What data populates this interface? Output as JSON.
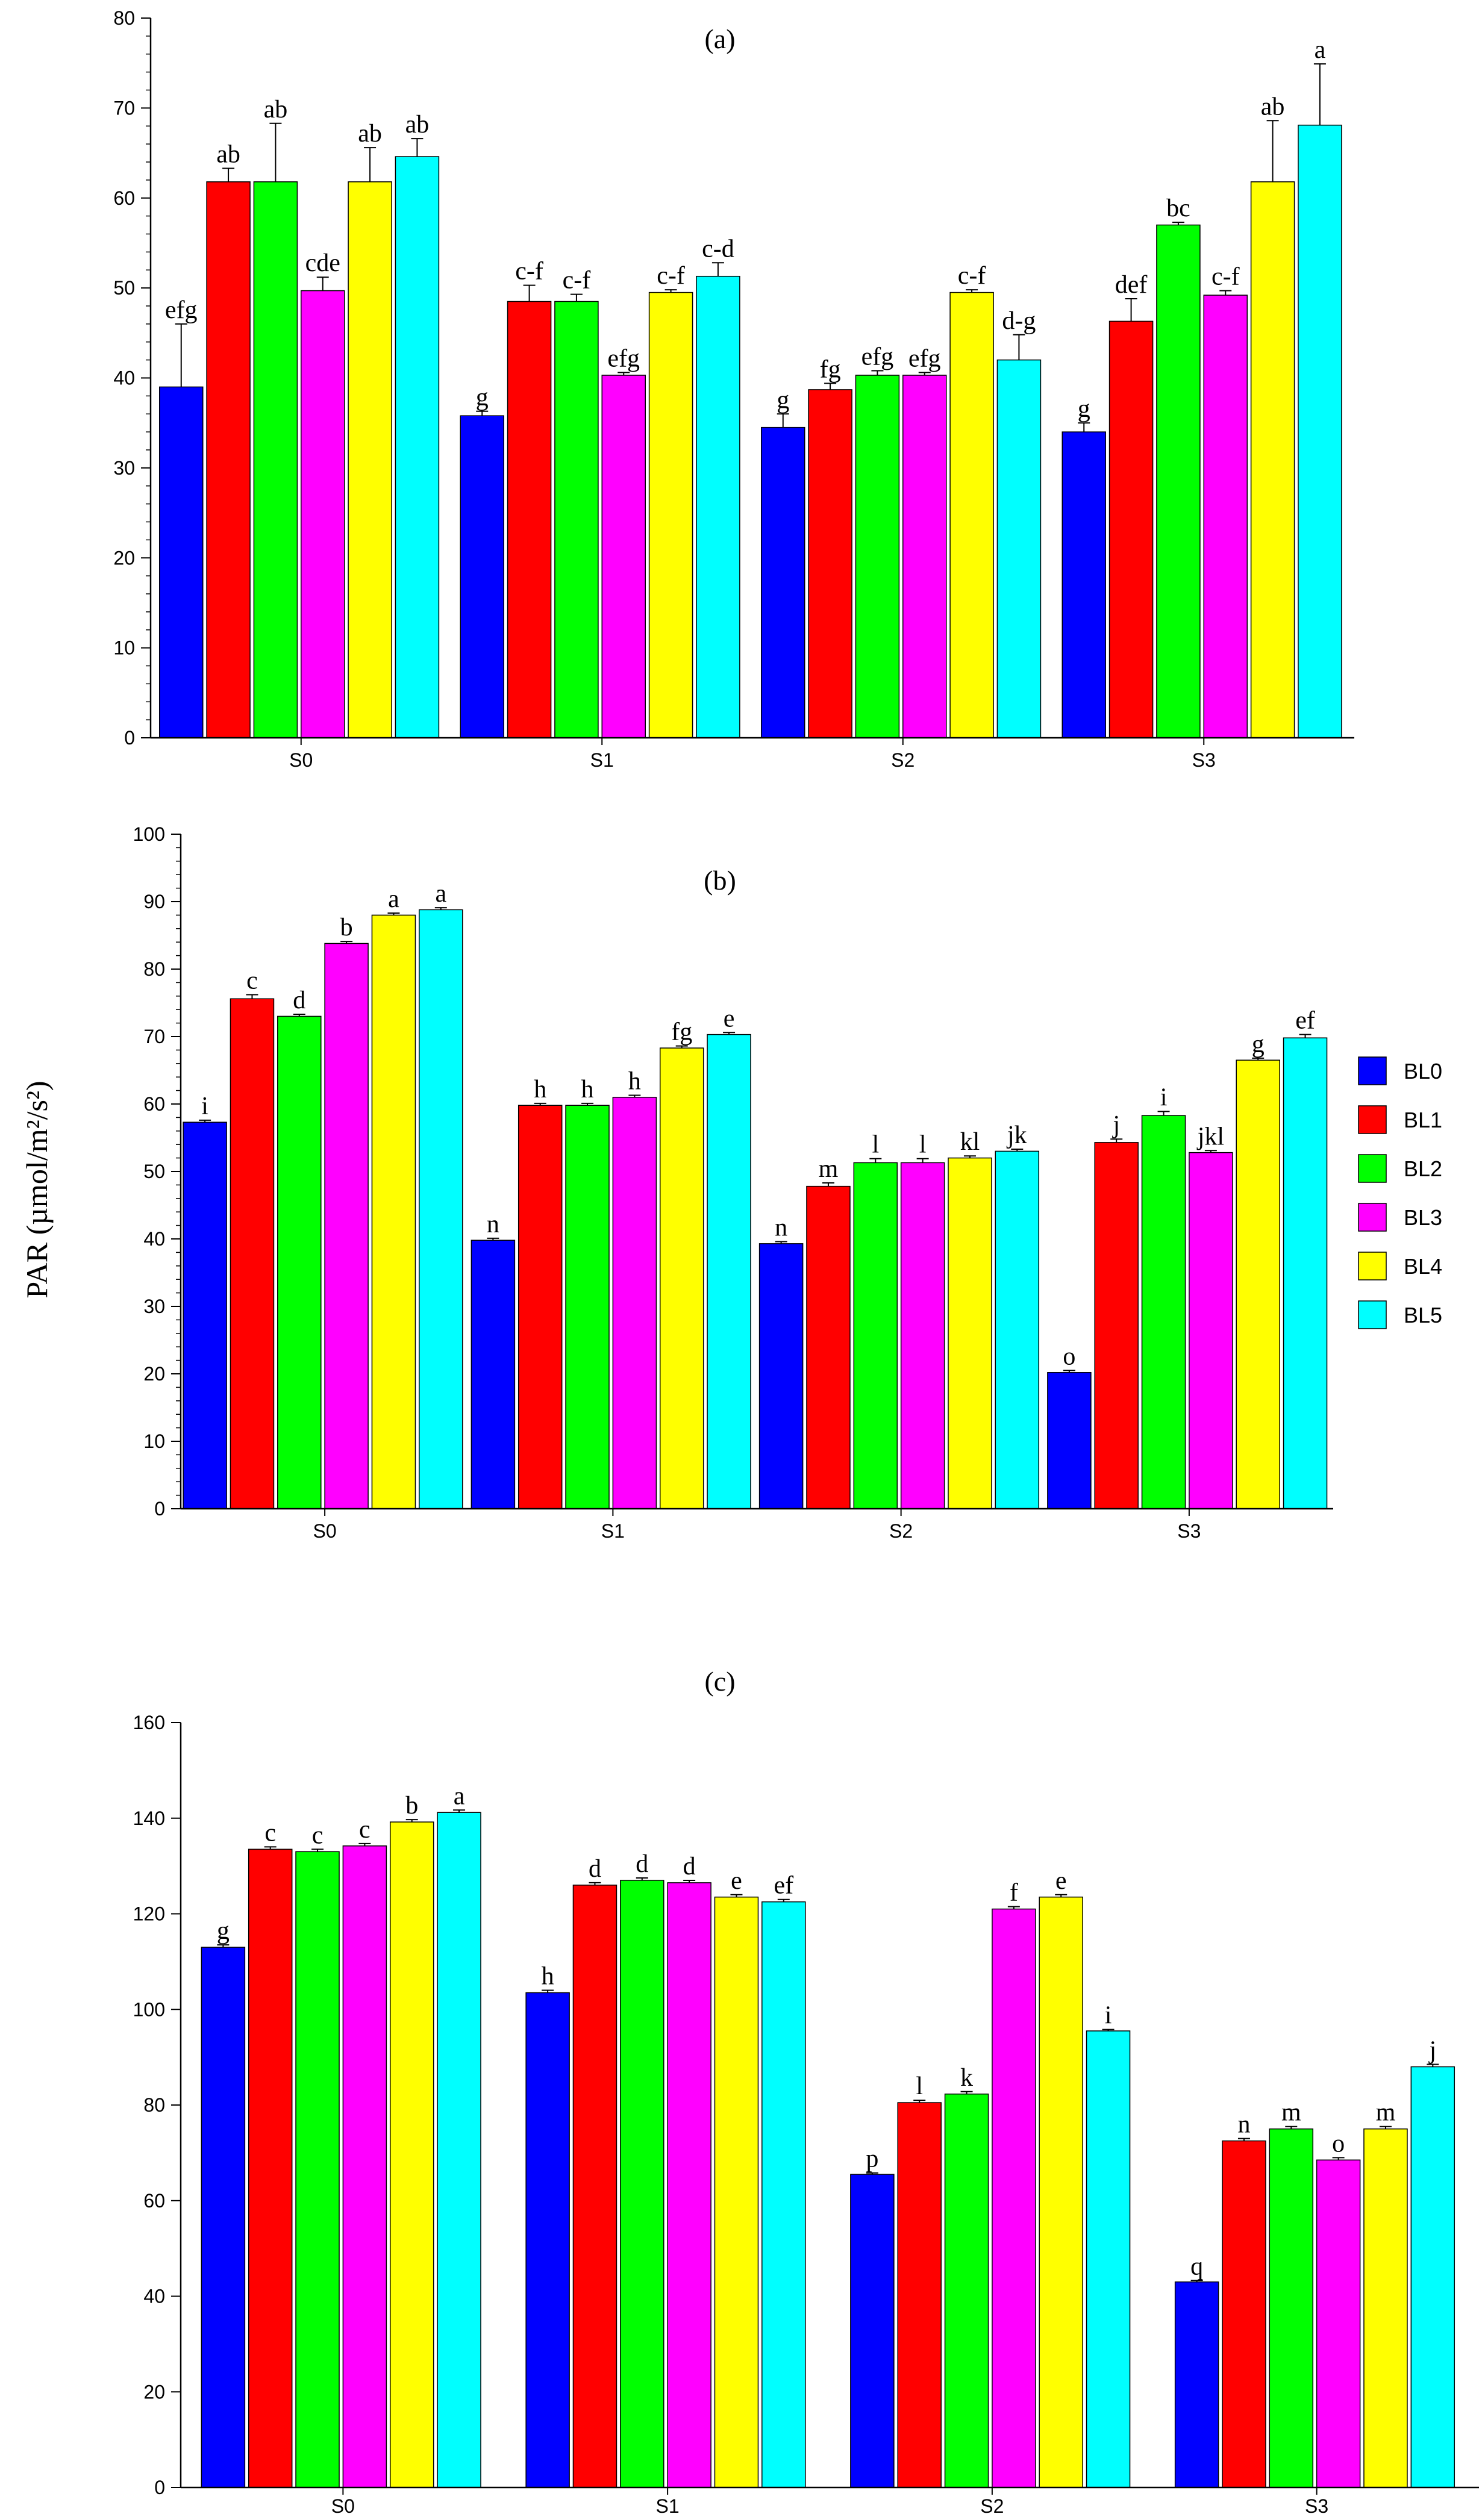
{
  "ylabel": "PAR (µmol/m²/s²)",
  "chart_data": [
    {
      "type": "bar",
      "title": "(a)",
      "categories": [
        "S0",
        "S1",
        "S2",
        "S3"
      ],
      "ylim": [
        0,
        80
      ],
      "yticks": [
        0,
        10,
        20,
        30,
        40,
        50,
        60,
        70,
        80
      ],
      "series": [
        {
          "name": "BL0",
          "color": "#0000ff",
          "values": [
            39,
            35.8,
            34.5,
            34
          ],
          "errors": [
            7,
            0.5,
            1.5,
            1
          ],
          "labels": [
            "efg",
            "g",
            "g",
            "g"
          ]
        },
        {
          "name": "BL1",
          "color": "#ff0000",
          "values": [
            61.8,
            48.5,
            38.7,
            46.3
          ],
          "errors": [
            1.5,
            1.8,
            0.7,
            2.5
          ],
          "labels": [
            "ab",
            "c-f",
            "fg",
            "def"
          ]
        },
        {
          "name": "BL2",
          "color": "#00ff00",
          "values": [
            61.8,
            48.5,
            40.3,
            57
          ],
          "errors": [
            6.5,
            0.8,
            0.5,
            0.3
          ],
          "labels": [
            "ab",
            "c-f",
            "efg",
            "bc"
          ]
        },
        {
          "name": "BL3",
          "color": "#ff00ff",
          "values": [
            49.7,
            40.3,
            40.3,
            49.2
          ],
          "errors": [
            1.5,
            0.3,
            0.3,
            0.5
          ],
          "labels": [
            "cde",
            "efg",
            "efg",
            "c-f"
          ]
        },
        {
          "name": "BL4",
          "color": "#ffff00",
          "values": [
            61.8,
            49.5,
            49.5,
            61.8
          ],
          "errors": [
            3.8,
            0.3,
            0.3,
            6.8
          ],
          "labels": [
            "ab",
            "c-f",
            "c-f",
            "ab"
          ]
        },
        {
          "name": "BL5",
          "color": "#00ffff",
          "values": [
            64.6,
            51.3,
            42,
            68.1
          ],
          "errors": [
            2,
            1.5,
            2.8,
            6.8
          ],
          "labels": [
            "ab",
            "c-d",
            "d-g",
            "a"
          ]
        }
      ]
    },
    {
      "type": "bar",
      "title": "(b)",
      "categories": [
        "S0",
        "S1",
        "S2",
        "S3"
      ],
      "ylim": [
        0,
        100
      ],
      "yticks": [
        0,
        10,
        20,
        30,
        40,
        50,
        60,
        70,
        80,
        90,
        100
      ],
      "legend": "right",
      "series": [
        {
          "name": "BL0",
          "color": "#0000ff",
          "values": [
            57.3,
            39.8,
            39.3,
            20.2
          ],
          "errors": [
            0.3,
            0.3,
            0.3,
            0.3
          ],
          "labels": [
            "i",
            "n",
            "n",
            "o"
          ]
        },
        {
          "name": "BL1",
          "color": "#ff0000",
          "values": [
            75.6,
            59.8,
            47.8,
            54.3
          ],
          "errors": [
            0.6,
            0.3,
            0.5,
            0.5
          ],
          "labels": [
            "c",
            "h",
            "m",
            "j"
          ]
        },
        {
          "name": "BL2",
          "color": "#00ff00",
          "values": [
            73,
            59.8,
            51.3,
            58.3
          ],
          "errors": [
            0.3,
            0.3,
            0.6,
            0.6
          ],
          "labels": [
            "d",
            "h",
            "l",
            "i"
          ]
        },
        {
          "name": "BL3",
          "color": "#ff00ff",
          "values": [
            83.8,
            61,
            51.3,
            52.8
          ],
          "errors": [
            0.3,
            0.3,
            0.6,
            0.3
          ],
          "labels": [
            "b",
            "h",
            "l",
            "jkl"
          ]
        },
        {
          "name": "BL4",
          "color": "#ffff00",
          "values": [
            88,
            68.3,
            52,
            66.5
          ],
          "errors": [
            0.3,
            0.3,
            0.3,
            0.3
          ],
          "labels": [
            "a",
            "fg",
            "kl",
            "g"
          ]
        },
        {
          "name": "BL5",
          "color": "#00ffff",
          "values": [
            88.8,
            70.3,
            53,
            69.8
          ],
          "errors": [
            0.3,
            0.3,
            0.3,
            0.5
          ],
          "labels": [
            "a",
            "e",
            "jk",
            "ef"
          ]
        }
      ]
    },
    {
      "type": "bar",
      "title": "(c)",
      "categories": [
        "S0",
        "S1",
        "S2",
        "S3"
      ],
      "ylim": [
        0,
        160
      ],
      "yticks": [
        0,
        20,
        40,
        60,
        80,
        100,
        120,
        140,
        160
      ],
      "series": [
        {
          "name": "BL0",
          "color": "#0000ff",
          "values": [
            113,
            103.5,
            65.5,
            43
          ],
          "errors": [
            0.5,
            0.5,
            0.3,
            0.3
          ],
          "labels": [
            "g",
            "h",
            "p",
            "q"
          ]
        },
        {
          "name": "BL1",
          "color": "#ff0000",
          "values": [
            133.5,
            126,
            80.5,
            72.5
          ],
          "errors": [
            0.5,
            0.5,
            0.5,
            0.5
          ],
          "labels": [
            "c",
            "d",
            "l",
            "n"
          ]
        },
        {
          "name": "BL2",
          "color": "#00ff00",
          "values": [
            133,
            127,
            82.3,
            75
          ],
          "errors": [
            0.5,
            0.5,
            0.5,
            0.5
          ],
          "labels": [
            "c",
            "d",
            "k",
            "m"
          ]
        },
        {
          "name": "BL3",
          "color": "#ff00ff",
          "values": [
            134.2,
            126.5,
            121,
            68.5
          ],
          "errors": [
            0.5,
            0.5,
            0.5,
            0.5
          ],
          "labels": [
            "c",
            "d",
            "f",
            "o"
          ]
        },
        {
          "name": "BL4",
          "color": "#ffff00",
          "values": [
            139.2,
            123.5,
            123.5,
            75
          ],
          "errors": [
            0.5,
            0.5,
            0.5,
            0.5
          ],
          "labels": [
            "b",
            "e",
            "e",
            "m"
          ]
        },
        {
          "name": "BL5",
          "color": "#00ffff",
          "values": [
            141.2,
            122.5,
            95.5,
            88
          ],
          "errors": [
            0.5,
            0.5,
            0.3,
            0.5
          ],
          "labels": [
            "a",
            "ef",
            "i",
            "j"
          ]
        }
      ]
    }
  ]
}
